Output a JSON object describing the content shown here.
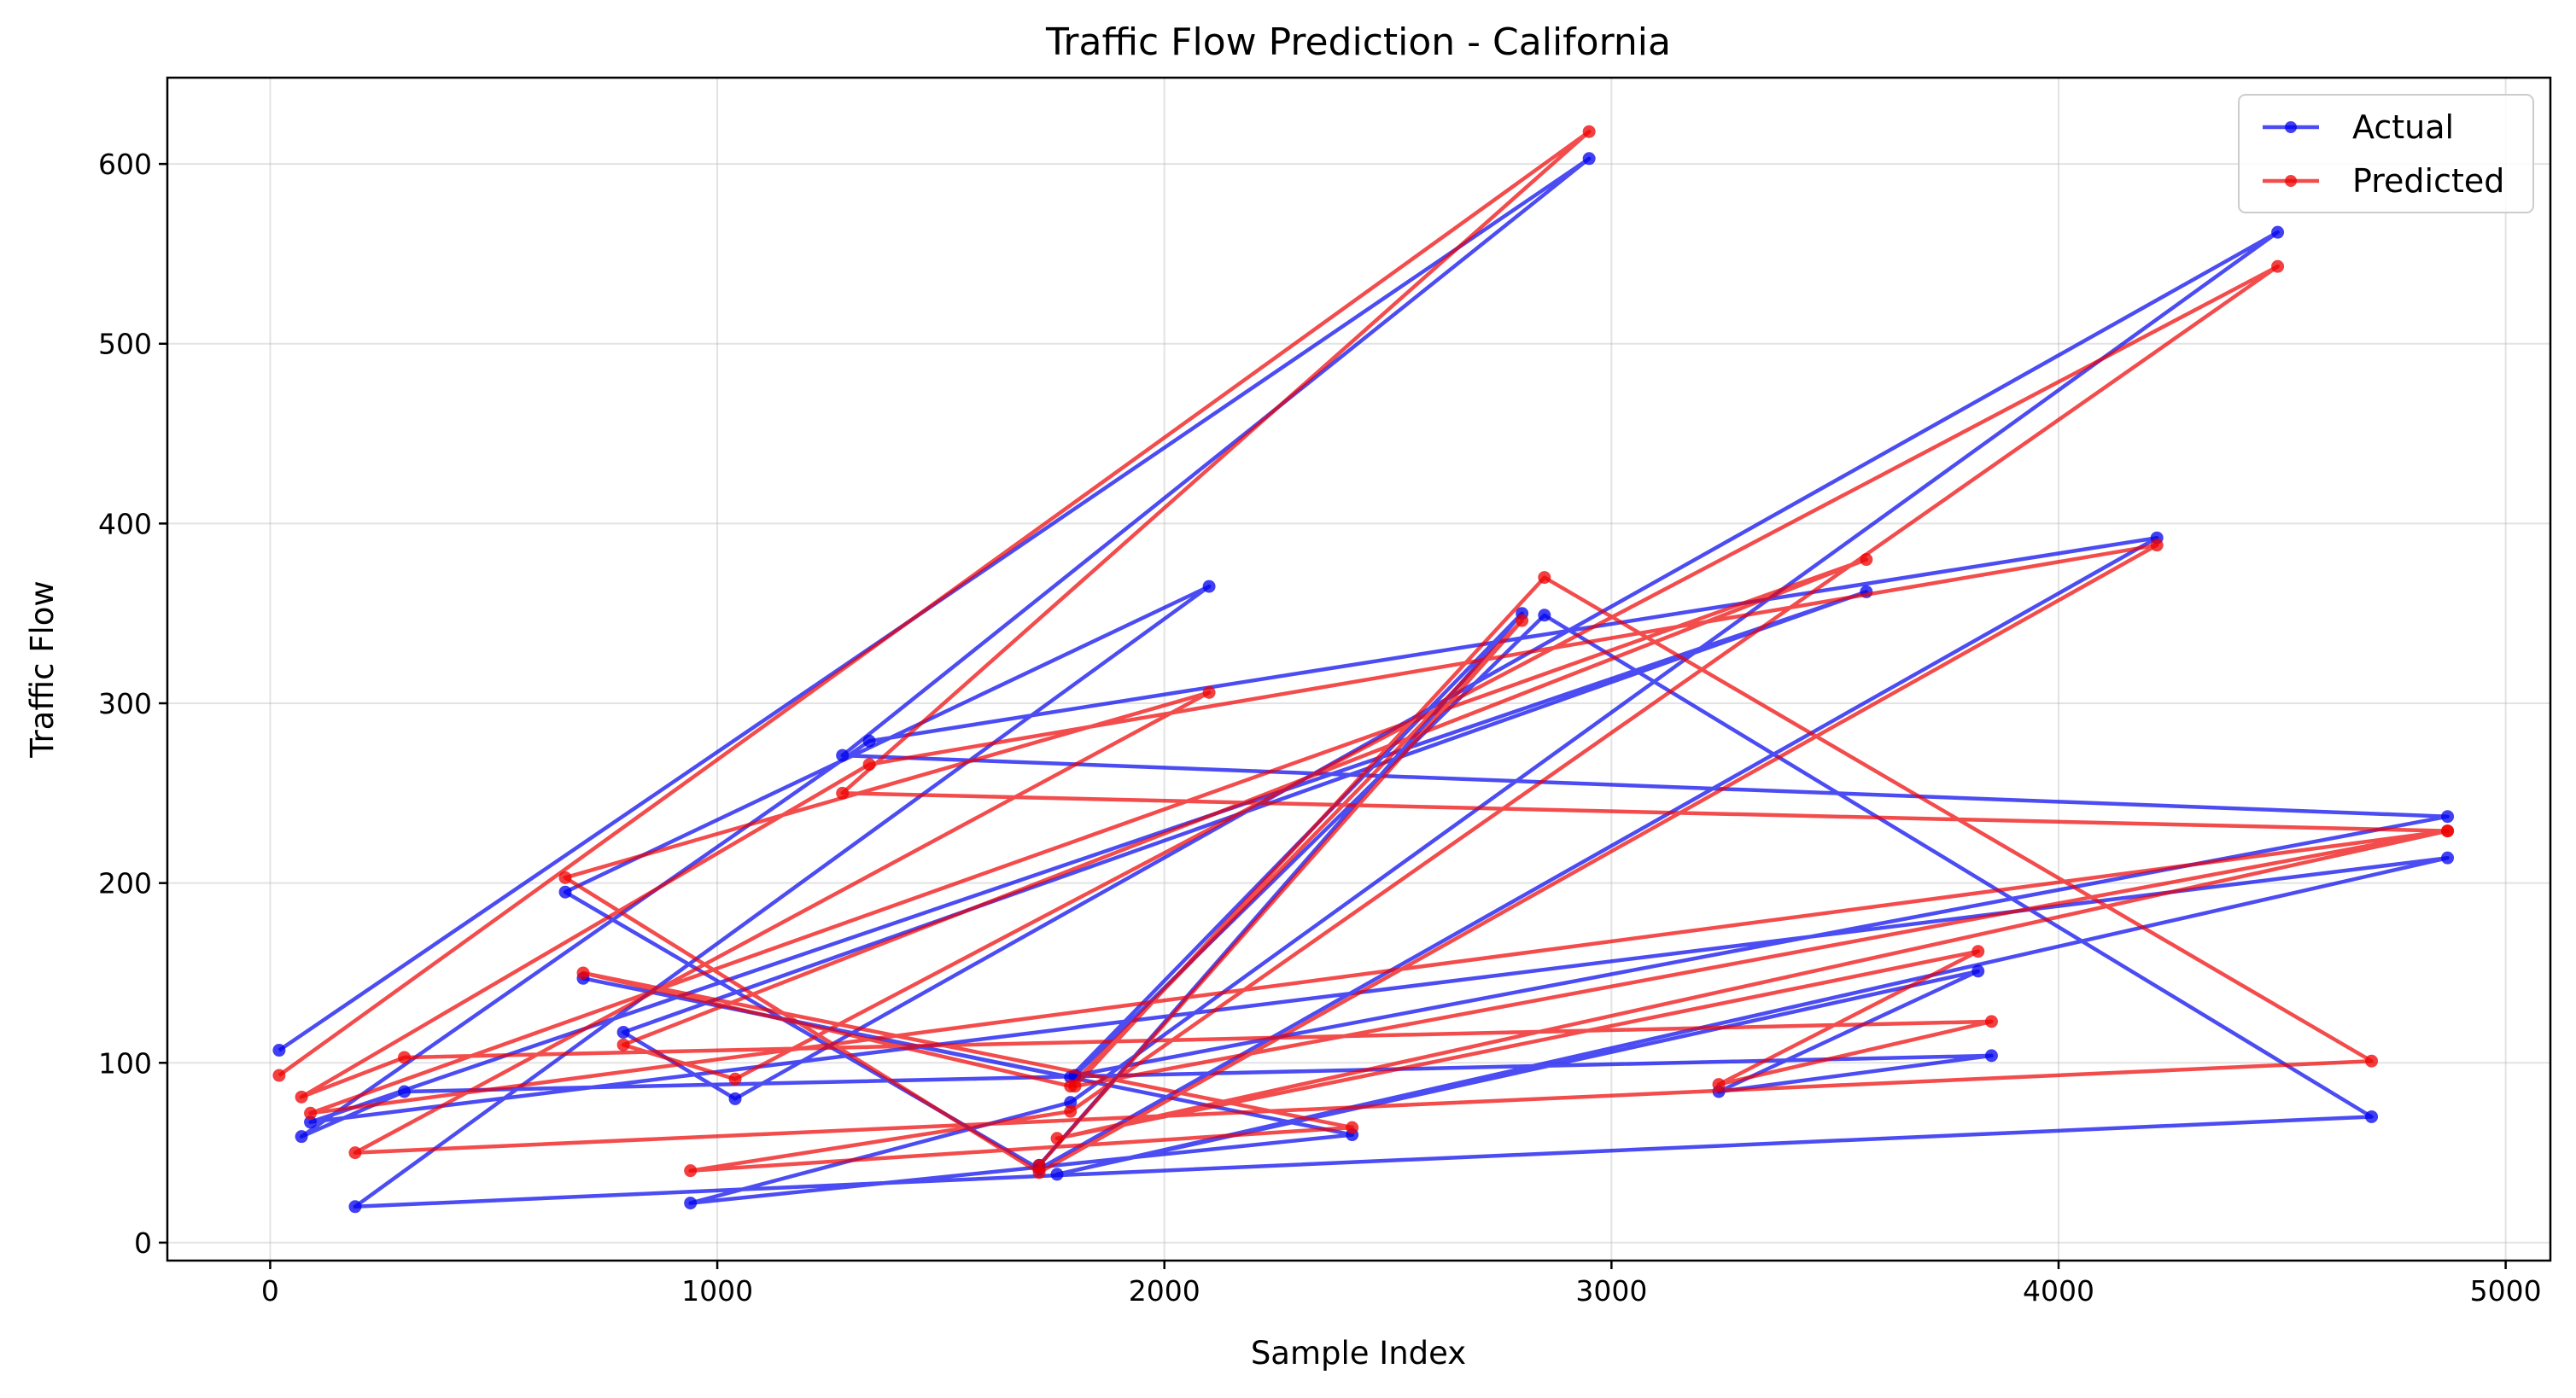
{
  "chart_data": {
    "type": "line",
    "title": "Traffic Flow Prediction - California",
    "xlabel": "Sample Index",
    "ylabel": "Traffic Flow",
    "xlim": [
      -230,
      5100
    ],
    "ylim": [
      -10,
      648
    ],
    "xticks": [
      0,
      1000,
      2000,
      3000,
      4000,
      5000
    ],
    "yticks": [
      0,
      100,
      200,
      300,
      400,
      500,
      600
    ],
    "grid": true,
    "legend_position": "top-right",
    "x": [
      20,
      2950,
      1280,
      4870,
      1800,
      2850,
      4700,
      190,
      2100,
      660,
      1720,
      4220,
      1340,
      70,
      300,
      3850,
      3240,
      3820,
      1760,
      4870,
      90,
      3570,
      790,
      1040,
      4490,
      1790,
      940,
      2420,
      700,
      1790,
      2800,
      1720
    ],
    "series": [
      {
        "name": "Actual",
        "color": "#0000ee",
        "values": [
          107,
          603,
          271,
          237,
          93,
          349,
          70,
          20,
          365,
          195,
          41,
          392,
          279,
          59,
          84,
          104,
          84,
          151,
          38,
          214,
          67,
          362,
          117,
          80,
          562,
          78,
          22,
          60,
          147,
          92,
          350,
          43
        ]
      },
      {
        "name": "Predicted",
        "color": "#ee0000",
        "values": [
          93,
          618,
          250,
          229,
          87,
          370,
          101,
          50,
          306,
          203,
          39,
          388,
          266,
          81,
          103,
          123,
          88,
          162,
          58,
          229,
          72,
          380,
          110,
          91,
          543,
          73,
          40,
          64,
          150,
          87,
          346,
          43
        ]
      }
    ]
  }
}
